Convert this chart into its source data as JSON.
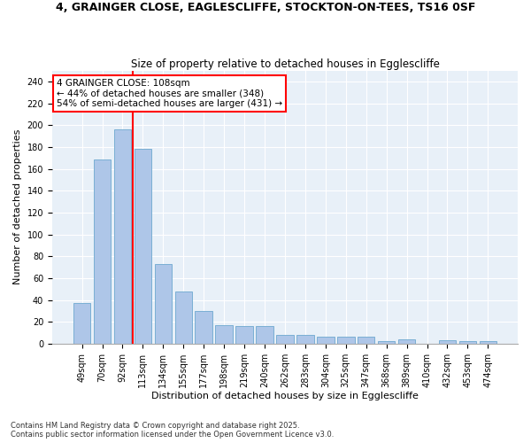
{
  "title": "4, GRAINGER CLOSE, EAGLESCLIFFE, STOCKTON-ON-TEES, TS16 0SF",
  "subtitle": "Size of property relative to detached houses in Egglescliffe",
  "xlabel": "Distribution of detached houses by size in Egglescliffe",
  "ylabel": "Number of detached properties",
  "categories": [
    "49sqm",
    "70sqm",
    "92sqm",
    "113sqm",
    "134sqm",
    "155sqm",
    "177sqm",
    "198sqm",
    "219sqm",
    "240sqm",
    "262sqm",
    "283sqm",
    "304sqm",
    "325sqm",
    "347sqm",
    "368sqm",
    "389sqm",
    "410sqm",
    "432sqm",
    "453sqm",
    "474sqm"
  ],
  "values": [
    37,
    169,
    196,
    178,
    73,
    48,
    30,
    17,
    16,
    16,
    8,
    8,
    6,
    6,
    6,
    2,
    4,
    0,
    3,
    2,
    2
  ],
  "bar_color": "#aec6e8",
  "bar_edge_color": "#7aafd4",
  "vline_x_index": 2.5,
  "vline_color": "red",
  "annotation_text": "4 GRAINGER CLOSE: 108sqm\n← 44% of detached houses are smaller (348)\n54% of semi-detached houses are larger (431) →",
  "annotation_box_color": "white",
  "annotation_box_edge": "red",
  "ylim": [
    0,
    250
  ],
  "yticks": [
    0,
    20,
    40,
    60,
    80,
    100,
    120,
    140,
    160,
    180,
    200,
    220,
    240
  ],
  "background_color": "#e8f0f8",
  "footer": "Contains HM Land Registry data © Crown copyright and database right 2025.\nContains public sector information licensed under the Open Government Licence v3.0.",
  "title_fontsize": 9,
  "subtitle_fontsize": 8.5,
  "ylabel_fontsize": 8,
  "xlabel_fontsize": 8,
  "tick_fontsize": 7,
  "annotation_fontsize": 7.5,
  "footer_fontsize": 6
}
